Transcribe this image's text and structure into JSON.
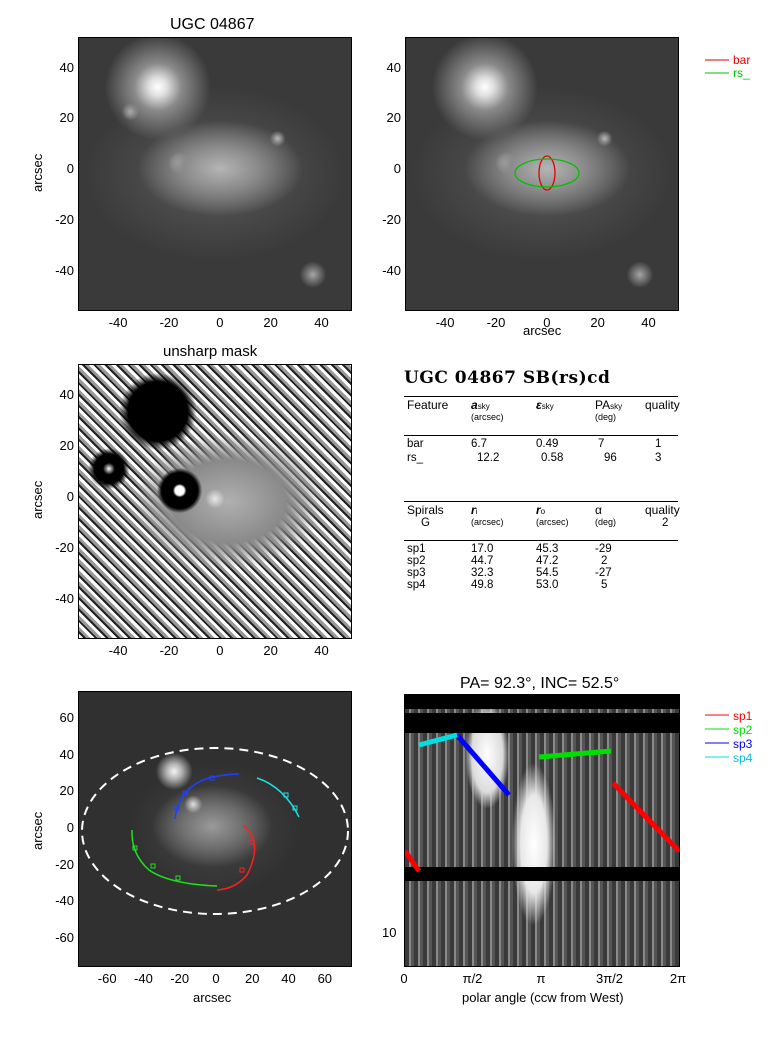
{
  "panels": {
    "p1_title": "UGC 04867",
    "p3_title": "unsharp mask",
    "p6_title": "PA=  92.3°, INC=  52.5°"
  },
  "axes": {
    "arcsec": "arcsec",
    "polar_xlabel": "polar angle (ccw from West)",
    "ticks_60": [
      "-40",
      "-20",
      "0",
      "20",
      "40"
    ],
    "ticks_80": [
      "-60",
      "-40",
      "-20",
      "0",
      "20",
      "40",
      "60"
    ],
    "polar_xticks": [
      "0",
      "π/2",
      "π",
      "3π/2",
      "2π"
    ],
    "polar_ytick": "10"
  },
  "legend_top": [
    {
      "label": "bar",
      "color": "#e00000"
    },
    {
      "label": "rs_",
      "color": "#00c000"
    }
  ],
  "legend_bottom": [
    {
      "label": "sp1",
      "color": "#ff0000"
    },
    {
      "label": "sp2",
      "color": "#00e000"
    },
    {
      "label": "sp3",
      "color": "#0000ff"
    },
    {
      "label": "sp4",
      "color": "#00e0e0"
    }
  ],
  "table": {
    "heading": "UGC 04867   SB(rs)cd",
    "features_header": [
      "Feature",
      "a",
      "ε",
      "PA",
      "quality"
    ],
    "features_sub": [
      "",
      "(arcsec)",
      "",
      "(deg)",
      ""
    ],
    "sky": "sky",
    "features": [
      [
        "bar",
        "6.7",
        "0.49",
        "7",
        "1"
      ],
      [
        "rs_",
        "12.2",
        "0.58",
        "96",
        "3"
      ]
    ],
    "spirals_header": [
      "Spirals",
      "r",
      "r",
      "α",
      "quality"
    ],
    "spirals_sub1": [
      "G",
      "(arcsec)",
      "(arcsec)",
      "(deg)",
      "2"
    ],
    "ri_sub": "i",
    "ro_sub": "o",
    "spirals": [
      [
        "sp1",
        "17.0",
        "45.3",
        "-29"
      ],
      [
        "sp2",
        "44.7",
        "47.2",
        "2"
      ],
      [
        "sp3",
        "32.3",
        "54.5",
        "-27"
      ],
      [
        "sp4",
        "49.8",
        "53.0",
        "5"
      ]
    ]
  }
}
